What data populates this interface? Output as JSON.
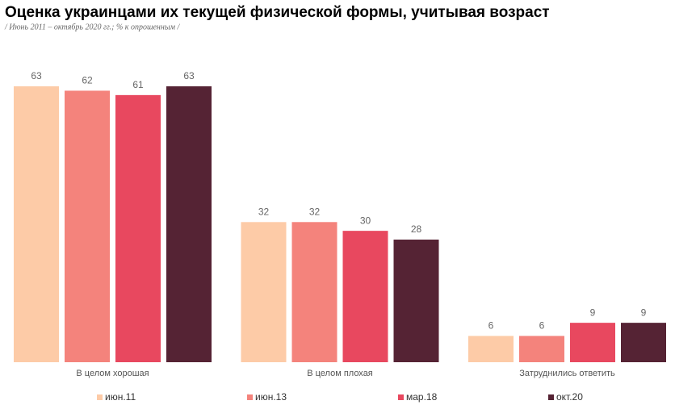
{
  "chart_data": {
    "type": "bar",
    "title": "Оценка украинцами их текущей физической формы, учитывая возраст",
    "subtitle": "/ Июнь 2011 – октябрь 2020 гг.; % к опрошенным /",
    "categories": [
      "В целом хорошая",
      "В целом плохая",
      "Затруднились ответить"
    ],
    "series": [
      {
        "name": "июн.11",
        "color": "#fdcba7",
        "values": [
          63,
          32,
          6
        ]
      },
      {
        "name": "июн.13",
        "color": "#f4837c",
        "values": [
          62,
          32,
          6
        ]
      },
      {
        "name": "мар.18",
        "color": "#e8485f",
        "values": [
          61,
          30,
          9
        ]
      },
      {
        "name": "окт.20",
        "color": "#552334",
        "values": [
          63,
          28,
          9
        ]
      }
    ],
    "ylim": [
      0,
      70
    ]
  }
}
